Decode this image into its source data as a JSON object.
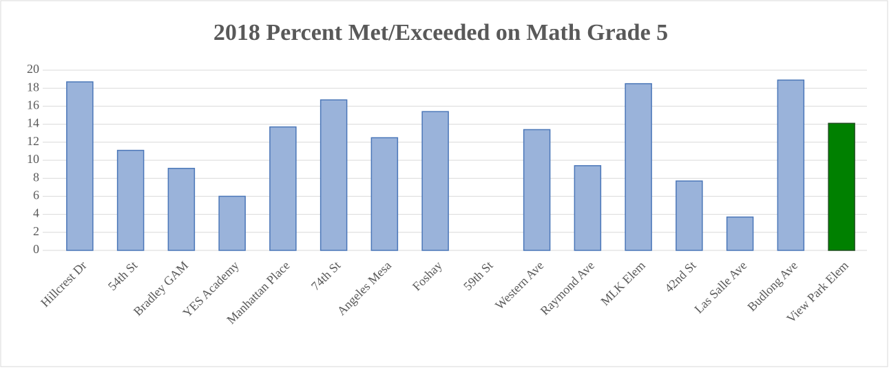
{
  "chart_data": {
    "type": "bar",
    "title": "2018  Percent Met/Exceeded on Math Grade 5",
    "categories": [
      "Hillcrest Dr",
      "54th St",
      "Bradley GAM",
      "YES Academy",
      "Manhattan Place",
      "74th St",
      "Angeles Mesa",
      "Foshay",
      "59th St",
      "Western Ave",
      "Raymond Ave",
      "MLK Elem",
      "42nd St",
      "Las Salle Ave",
      "Budlong Ave",
      "View Park Elem"
    ],
    "values": [
      18.7,
      11.1,
      9.1,
      6.0,
      13.7,
      16.7,
      12.5,
      15.4,
      null,
      13.4,
      9.4,
      18.5,
      7.7,
      3.7,
      18.9,
      14.1
    ],
    "colors": [
      "#9ab3da",
      "#9ab3da",
      "#9ab3da",
      "#9ab3da",
      "#9ab3da",
      "#9ab3da",
      "#9ab3da",
      "#9ab3da",
      "#9ab3da",
      "#9ab3da",
      "#9ab3da",
      "#9ab3da",
      "#9ab3da",
      "#9ab3da",
      "#9ab3da",
      "#008000"
    ],
    "ylim": [
      0,
      20
    ],
    "yticks": [
      0,
      2,
      4,
      6,
      8,
      10,
      12,
      14,
      16,
      18,
      20
    ],
    "grid": true
  }
}
